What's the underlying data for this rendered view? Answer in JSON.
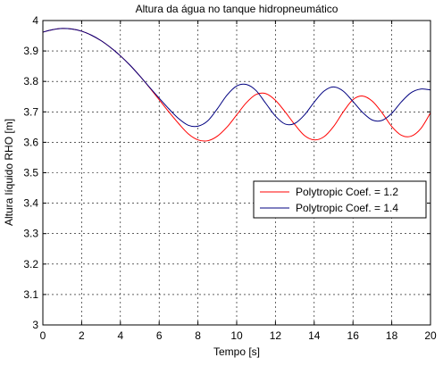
{
  "chart_data": {
    "type": "line",
    "title": "Altura da água no tanque hidropneumático",
    "xlabel": "Tempo [s]",
    "ylabel": "Altura líquido RHO [m]",
    "xlim": [
      0,
      20
    ],
    "ylim": [
      3,
      4
    ],
    "xticks": [
      0,
      2,
      4,
      6,
      8,
      10,
      12,
      14,
      16,
      18,
      20
    ],
    "yticks": [
      3,
      3.1,
      3.2,
      3.3,
      3.4,
      3.5,
      3.6,
      3.7,
      3.8,
      3.9,
      4
    ],
    "grid": true,
    "legend_position": "center-right",
    "series": [
      {
        "name": "Polytropic Coef. = 1.2",
        "color": "#ff0000",
        "x": [
          0,
          0.5,
          1,
          1.5,
          2,
          2.5,
          3,
          3.5,
          4,
          4.5,
          5,
          5.5,
          6,
          6.5,
          7,
          7.5,
          8,
          8.5,
          9,
          9.5,
          10,
          10.5,
          11,
          11.5,
          12,
          12.5,
          13,
          13.5,
          14,
          14.5,
          15,
          15.5,
          16,
          16.5,
          17,
          17.5,
          18,
          18.5,
          19,
          19.5,
          20
        ],
        "y": [
          3.962,
          3.97,
          3.974,
          3.972,
          3.965,
          3.952,
          3.934,
          3.911,
          3.884,
          3.853,
          3.818,
          3.78,
          3.74,
          3.7,
          3.662,
          3.628,
          3.608,
          3.605,
          3.62,
          3.65,
          3.69,
          3.73,
          3.757,
          3.76,
          3.738,
          3.7,
          3.658,
          3.622,
          3.608,
          3.618,
          3.652,
          3.7,
          3.74,
          3.752,
          3.735,
          3.697,
          3.652,
          3.623,
          3.62,
          3.645,
          3.697
        ]
      },
      {
        "name": "Polytropic Coef. = 1.4",
        "color": "#000080",
        "x": [
          0,
          0.5,
          1,
          1.5,
          2,
          2.5,
          3,
          3.5,
          4,
          4.5,
          5,
          5.5,
          6,
          6.5,
          7,
          7.5,
          8,
          8.5,
          9,
          9.5,
          10,
          10.5,
          11,
          11.5,
          12,
          12.5,
          13,
          13.5,
          14,
          14.5,
          15,
          15.5,
          16,
          16.5,
          17,
          17.5,
          18,
          18.5,
          19,
          19.5,
          20
        ],
        "y": [
          3.962,
          3.97,
          3.974,
          3.972,
          3.965,
          3.952,
          3.934,
          3.911,
          3.884,
          3.853,
          3.818,
          3.781,
          3.745,
          3.71,
          3.678,
          3.656,
          3.653,
          3.67,
          3.71,
          3.755,
          3.785,
          3.79,
          3.77,
          3.728,
          3.686,
          3.66,
          3.662,
          3.69,
          3.732,
          3.768,
          3.782,
          3.768,
          3.734,
          3.698,
          3.673,
          3.672,
          3.695,
          3.733,
          3.763,
          3.775,
          3.772
        ]
      }
    ]
  }
}
